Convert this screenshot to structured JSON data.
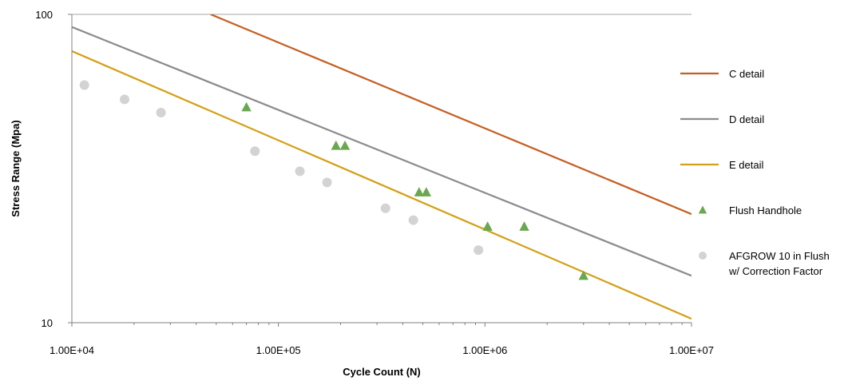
{
  "chart_data": {
    "type": "scatter",
    "xlabel": "Cycle Count (N)",
    "ylabel": "Stress Range (Mpa)",
    "x_scale": "log",
    "y_scale": "log",
    "xlim": [
      10000,
      10000000
    ],
    "ylim": [
      10,
      100
    ],
    "x_ticks": [
      10000,
      100000,
      1000000,
      10000000
    ],
    "x_tick_labels": [
      "1.00E+04",
      "1.00E+05",
      "1.00E+06",
      "1.00E+07"
    ],
    "y_ticks": [
      10,
      100
    ],
    "y_tick_labels": [
      "10",
      "100"
    ],
    "grid": {
      "major_horizontal": true
    },
    "legend_position": "right",
    "series": [
      {
        "name": "C detail",
        "kind": "line",
        "color": "#C65F24",
        "points": [
          [
            47000,
            100
          ],
          [
            10000000,
            22.5
          ]
        ]
      },
      {
        "name": "D detail",
        "kind": "line",
        "color": "#8C8C8C",
        "points": [
          [
            10000,
            91
          ],
          [
            10000000,
            14.2
          ]
        ]
      },
      {
        "name": "E detail",
        "kind": "line",
        "color": "#D4A017",
        "points": [
          [
            10000,
            76
          ],
          [
            10000000,
            10.3
          ]
        ]
      },
      {
        "name": "Flush Handhole",
        "kind": "marker",
        "marker": "triangle",
        "color": "#6AA84F",
        "points": [
          [
            70000,
            50
          ],
          [
            190000,
            37.5
          ],
          [
            210000,
            37.5
          ],
          [
            480000,
            26.5
          ],
          [
            520000,
            26.5
          ],
          [
            1030000,
            20.5
          ],
          [
            1550000,
            20.5
          ],
          [
            3000000,
            14.2
          ]
        ]
      },
      {
        "name": "AFGROW 10 in Flush w/ Correction Factor",
        "legend_lines": [
          "AFGROW 10 in Flush",
          "w/ Correction Factor"
        ],
        "kind": "marker",
        "marker": "circle",
        "color": "#D3D3D3",
        "points": [
          [
            11500,
            59
          ],
          [
            18000,
            53
          ],
          [
            27000,
            48
          ],
          [
            77000,
            36
          ],
          [
            127000,
            31
          ],
          [
            172000,
            28.5
          ],
          [
            330000,
            23.5
          ],
          [
            450000,
            21.5
          ],
          [
            930000,
            17.2
          ]
        ]
      }
    ]
  }
}
